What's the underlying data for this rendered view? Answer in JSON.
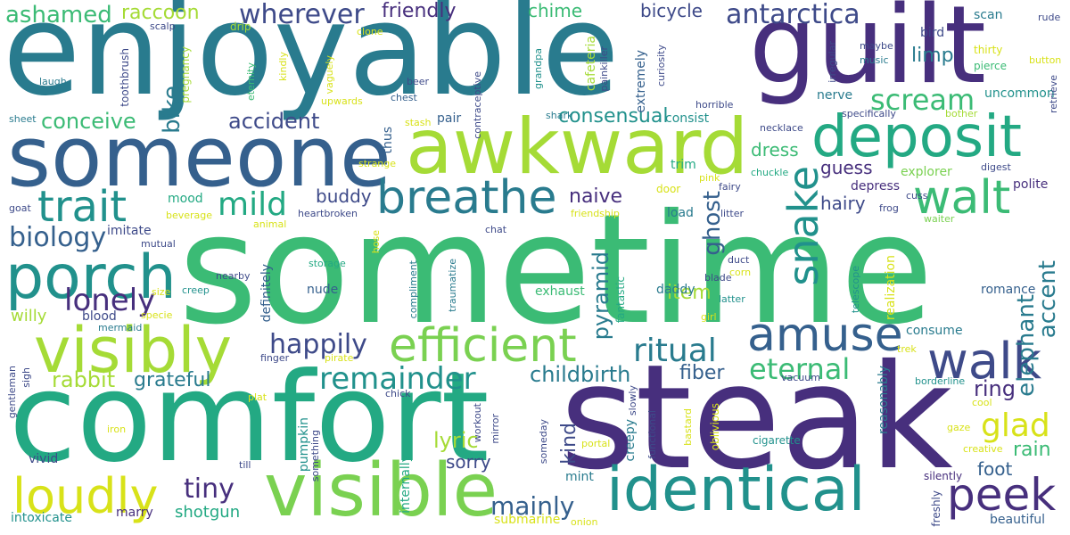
{
  "palette": {
    "purple": "#472f7d",
    "indigo": "#3e4a89",
    "blue": "#35608d",
    "teal": "#297b8e",
    "cyan": "#21918c",
    "seagreen": "#23a983",
    "green": "#3bbb75",
    "lime": "#7ad151",
    "yellowgreen": "#a5db36",
    "yellow": "#d8e219"
  },
  "words": {
    "sometime": "sometime",
    "enjoyable": "enjoyable",
    "comfort": "comfort",
    "steak": "steak",
    "guilt": "guilt",
    "someone": "someone",
    "awkward": "awkward",
    "deposit": "deposit",
    "visibly": "visibly",
    "visible": "visible",
    "identical": "identical",
    "porch": "porch",
    "efficient": "efficient",
    "amuse": "amuse",
    "walt": "walt",
    "walk": "walk",
    "breathe": "breathe",
    "trait": "trait",
    "loudly": "loudly",
    "peek": "peek",
    "snake": "snake",
    "remainder": "remainder",
    "mild": "mild",
    "ritual": "ritual",
    "scream": "scream",
    "eternal": "eternal",
    "antarctica": "antarctica",
    "lonely": "lonely",
    "wherever": "wherever",
    "happily": "happily",
    "biology": "biology",
    "glad": "glad",
    "tiny": "tiny",
    "conceive": "conceive",
    "ashamed": "ashamed",
    "mainly": "mainly",
    "childbirth": "childbirth",
    "rabbit": "rabbit",
    "elephant": "elephant",
    "accent": "accent",
    "accident": "accident",
    "ghost": "ghost",
    "bike": "bike",
    "grateful": "grateful",
    "lyric": "lyric",
    "consensual": "consensual",
    "pyramid": "pyramid",
    "ring": "ring",
    "friendly": "friendly",
    "raccoon": "raccoon",
    "bicycle": "bicycle",
    "chime": "chime",
    "limp": "limp",
    "buddy": "buddy",
    "naive": "naive",
    "guess": "guess",
    "dress": "dress",
    "hairy": "hairy",
    "item": "item",
    "fiber": "fiber",
    "sorry": "sorry",
    "rain": "rain",
    "foot": "foot",
    "shotgun": "shotgun",
    "kind": "kind",
    "willy": "willy",
    "nude": "nude",
    "mint": "mint",
    "explorer": "explorer",
    "depress": "depress",
    "polite": "polite",
    "consist": "consist",
    "trim": "trim",
    "load": "load",
    "daddy": "daddy",
    "exhaust": "exhaust",
    "nerve": "nerve",
    "consume": "consume",
    "romance": "romance",
    "realization": "realization",
    "vivid": "vivid",
    "intoxicate": "intoxicate",
    "mood": "mood",
    "imitate": "imitate",
    "blood": "blood",
    "creepy": "creepy",
    "pumpkin": "pumpkin",
    "definitely": "definitely",
    "uncommon": "uncommon",
    "extremely": "extremely",
    "cafeteria": "cafeteria",
    "scan": "scan",
    "bird": "bird",
    "thus": "thus",
    "pair": "pair",
    "internally": "internally",
    "submarine": "submarine",
    "marry": "marry",
    "beautiful": "beautiful",
    "freshly": "freshly",
    "reasonably": "reasonably",
    "silently": "silently",
    "cigarette": "cigarette",
    "fantastic": "fantastic",
    "door": "door",
    "strange": "strange",
    "fairy": "fairy",
    "pink": "pink",
    "storage": "storage",
    "drip": "drip",
    "eternity": "eternity",
    "pregnancy": "pregnancy",
    "toothbrush": "toothbrush",
    "laugh": "laugh",
    "sheet": "sheet",
    "scalp": "scalp",
    "kindly": "kindly",
    "vaguely": "vaguely",
    "upwards": "upwards",
    "clone": "clone",
    "beer": "beer",
    "chest": "chest",
    "stash": "stash",
    "contraceptive": "contraceptive",
    "grandpa": "grandpa",
    "painkiller": "painkiller",
    "shark": "shark",
    "curiosity": "curiosity",
    "horrible": "horrible",
    "irregular": "irregular",
    "maybe": "maybe",
    "music": "music",
    "thirty": "thirty",
    "pierce": "pierce",
    "button": "button",
    "rude": "rude",
    "retrieve": "retrieve",
    "bother": "bother",
    "specifically": "specifically",
    "necklace": "necklace",
    "chuckle": "chuckle",
    "digest": "digest",
    "cuss": "cuss",
    "frog": "frog",
    "waiter": "waiter",
    "litter": "litter",
    "blade": "blade",
    "goat": "goat",
    "beverage": "beverage",
    "friendship": "friendship",
    "animal": "animal",
    "heartbroken": "heartbroken",
    "mutual": "mutual",
    "chat": "chat",
    "hose": "hose",
    "nearby": "nearby",
    "duct": "duct",
    "corn": "corn",
    "size": "size",
    "creep": "creep",
    "compliment": "compliment",
    "traumatize": "traumatize",
    "latter": "latter",
    "telescope": "telescope",
    "specie": "specie",
    "mermaid": "mermaid",
    "girl": "girl",
    "gentleman": "gentleman",
    "sigh": "sigh",
    "finger": "finger",
    "pirate": "pirate",
    "trek": "trek",
    "vacuum": "vacuum",
    "borderline": "borderline",
    "cool": "cool",
    "gaze": "gaze",
    "creative": "creative",
    "chick": "chick",
    "workout": "workout",
    "slowly": "slowly",
    "mirror": "mirror",
    "plat": "plat",
    "iron": "iron",
    "functional": "functional",
    "bastard": "bastard",
    "oblivious": "oblivious",
    "someday": "someday",
    "portal": "portal",
    "till": "till",
    "something": "something",
    "onion": "onion"
  }
}
